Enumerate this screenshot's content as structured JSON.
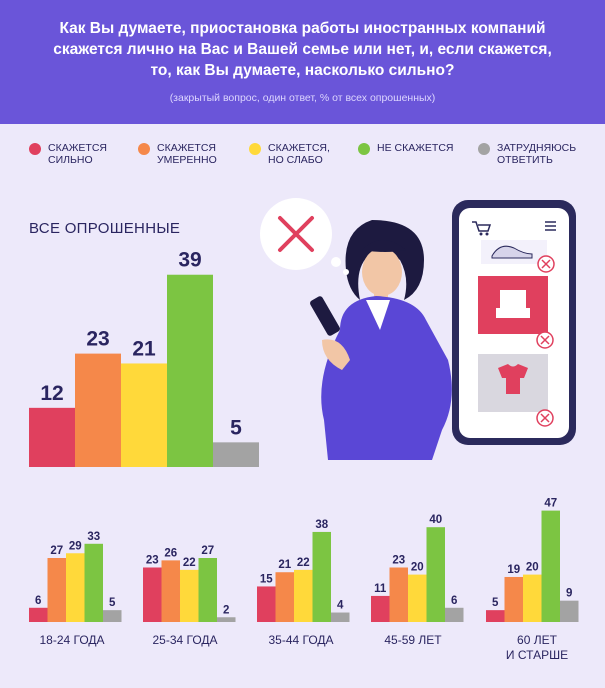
{
  "header": {
    "question_lines": [
      "Как Вы думаете, приостановка работы иностранных компаний",
      "скажется лично на Вас и Вашей семье или нет, и, если скажется,",
      "то, как Вы думаете, насколько сильно?"
    ],
    "note": "(закрытый вопрос, один ответ, % от всех опрошенных)"
  },
  "legend": [
    {
      "lines": [
        "СКАЖЕТСЯ",
        "СИЛЬНО"
      ],
      "color": "#e0405e"
    },
    {
      "lines": [
        "СКАЖЕТСЯ",
        "УМЕРЕННО"
      ],
      "color": "#f5884a"
    },
    {
      "lines": [
        "СКАЖЕТСЯ,",
        "НО СЛАБО"
      ],
      "color": "#ffd93a"
    },
    {
      "lines": [
        "НЕ СКАЖЕТСЯ"
      ],
      "color": "#7cc542"
    },
    {
      "lines": [
        "ЗАТРУДНЯЮСЬ",
        "ОТВЕТИТЬ"
      ],
      "color": "#a3a3a3"
    }
  ],
  "chart_data": [
    {
      "type": "bar",
      "title": "ВСЕ ОПРОШЕННЫЕ",
      "categories": [
        "СКАЖЕТСЯ СИЛЬНО",
        "СКАЖЕТСЯ УМЕРЕННО",
        "СКАЖЕТСЯ, НО СЛАБО",
        "НЕ СКАЖЕТСЯ",
        "ЗАТРУДНЯЮСЬ ОТВЕТИТЬ"
      ],
      "values": [
        12,
        23,
        21,
        39,
        5
      ]
    },
    {
      "type": "bar",
      "categories": [
        "18-24 ГОДА",
        "25-34 ГОДА",
        "35-44 ГОДА",
        "45-59 ЛЕТ",
        "60 ЛЕТ И СТАРШЕ"
      ],
      "group_labels": [
        [
          "18-24 ГОДА"
        ],
        [
          "25-34 ГОДА"
        ],
        [
          "35-44 ГОДА"
        ],
        [
          "45-59 ЛЕТ"
        ],
        [
          "60 ЛЕТ",
          "И СТАРШЕ"
        ]
      ],
      "series": [
        {
          "name": "СКАЖЕТСЯ СИЛЬНО",
          "values": [
            6,
            23,
            15,
            11,
            5
          ]
        },
        {
          "name": "СКАЖЕТСЯ УМЕРЕННО",
          "values": [
            27,
            26,
            21,
            23,
            19
          ]
        },
        {
          "name": "СКАЖЕТСЯ, НО СЛАБО",
          "values": [
            29,
            22,
            22,
            20,
            20
          ]
        },
        {
          "name": "НЕ СКАЖЕТСЯ",
          "values": [
            33,
            27,
            38,
            40,
            47
          ]
        },
        {
          "name": "ЗАТРУДНЯЮСЬ ОТВЕТИТЬ",
          "values": [
            5,
            2,
            4,
            6,
            9
          ]
        }
      ]
    }
  ]
}
